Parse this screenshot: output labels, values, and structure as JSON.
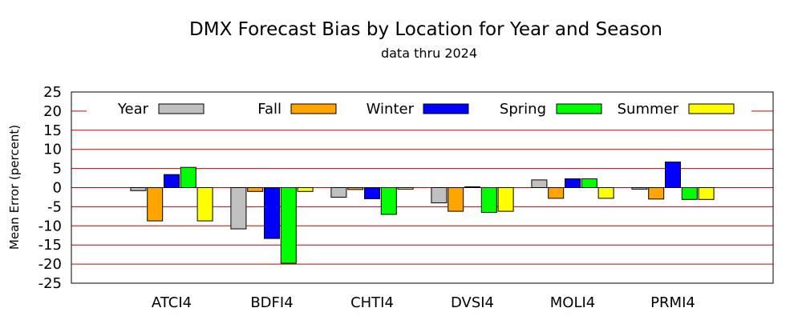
{
  "chart_data": {
    "type": "bar",
    "title": "DMX Forecast Bias by Location for Year and Season",
    "subtitle": "data thru 2024",
    "xlabel": "",
    "ylabel": "Mean Error (percent)",
    "ylim": [
      -25,
      25
    ],
    "yticks": [
      25,
      20,
      15,
      10,
      5,
      0,
      -5,
      -10,
      -15,
      -20,
      -25
    ],
    "ytick_labels": [
      "25",
      "20",
      "15",
      "10",
      "5",
      "0",
      "-5",
      "-10",
      "-15",
      "-20",
      "-25"
    ],
    "grid": true,
    "legend_position": "top",
    "categories": [
      "ATCI4",
      "BDFI4",
      "CHTI4",
      "DVSI4",
      "MOLI4",
      "PRMI4"
    ],
    "series": [
      {
        "name": "Year",
        "color": "#c0c0c0",
        "values": [
          -0.8,
          -10.8,
          -2.5,
          -4.0,
          2.0,
          -0.4
        ]
      },
      {
        "name": "Fall",
        "color": "#ffa500",
        "values": [
          -8.7,
          -1.0,
          -0.5,
          -6.2,
          -2.8,
          -3.0
        ]
      },
      {
        "name": "Winter",
        "color": "#0000ff",
        "values": [
          3.4,
          -13.3,
          -2.9,
          0.2,
          2.3,
          6.7
        ]
      },
      {
        "name": "Spring",
        "color": "#00ff00",
        "values": [
          5.3,
          -19.8,
          -7.0,
          -6.5,
          2.3,
          -3.1
        ]
      },
      {
        "name": "Summer",
        "color": "#ffff00",
        "values": [
          -8.7,
          -1.0,
          -0.4,
          -6.2,
          -2.8,
          -3.1
        ]
      }
    ],
    "gridline_color": "#cc0000"
  }
}
